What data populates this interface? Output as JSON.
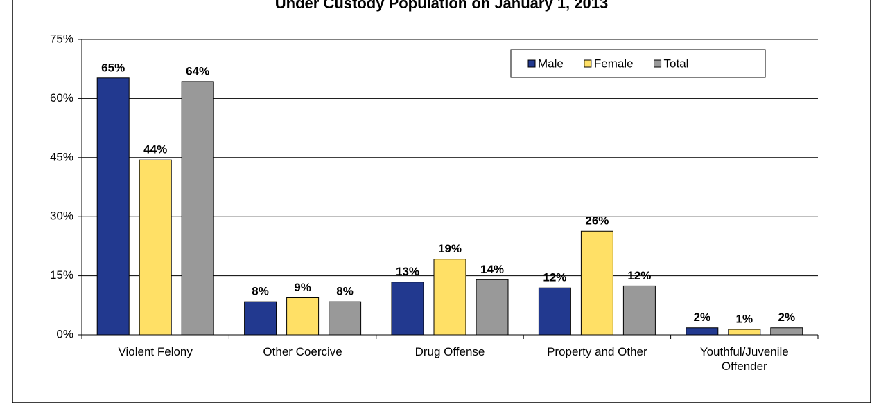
{
  "chart_data": {
    "type": "bar",
    "title": "Under Custody Population on January 1, 2013",
    "categories": [
      "Violent Felony",
      "Other Coercive",
      "Drug Offense",
      "Property and Other",
      "Youthful/Juvenile Offender"
    ],
    "series": [
      {
        "name": "Male",
        "color": "#22398f",
        "values": [
          65.2,
          8.4,
          13.4,
          11.9,
          1.8
        ],
        "value_labels": [
          "65%",
          "8%",
          "13%",
          "12%",
          "2%"
        ]
      },
      {
        "name": "Female",
        "color": "#ffe066",
        "values": [
          44.4,
          9.4,
          19.2,
          26.3,
          1.4
        ],
        "value_labels": [
          "44%",
          "9%",
          "19%",
          "26%",
          "1%"
        ]
      },
      {
        "name": "Total",
        "color": "#999999",
        "values": [
          64.3,
          8.4,
          14.0,
          12.4,
          1.8
        ],
        "value_labels": [
          "64%",
          "8%",
          "14%",
          "12%",
          "2%"
        ]
      }
    ],
    "ylim": [
      0,
      75
    ],
    "yticks": [
      {
        "value": 0,
        "label": "0%"
      },
      {
        "value": 15,
        "label": "15%"
      },
      {
        "value": 30,
        "label": "30%"
      },
      {
        "value": 45,
        "label": "45%"
      },
      {
        "value": 60,
        "label": "60%"
      },
      {
        "value": 75,
        "label": "75%"
      }
    ],
    "grid": true,
    "legend": "top-right"
  }
}
